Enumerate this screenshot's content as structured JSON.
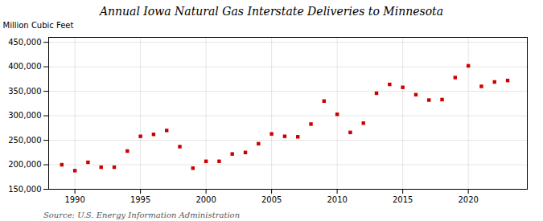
{
  "chart_data": {
    "type": "scatter",
    "title": "Annual Iowa Natural Gas Interstate Deliveries to Minnesota",
    "ylabel": "Million Cubic Feet",
    "source": "Source: U.S. Energy Information Administration",
    "x": [
      1989,
      1990,
      1991,
      1992,
      1993,
      1994,
      1995,
      1996,
      1997,
      1998,
      1999,
      2000,
      2001,
      2002,
      2003,
      2004,
      2005,
      2006,
      2007,
      2008,
      2009,
      2010,
      2011,
      2012,
      2013,
      2014,
      2015,
      2016,
      2017,
      2018,
      2019,
      2020,
      2021,
      2022,
      2023
    ],
    "values": [
      200000,
      188000,
      205000,
      195000,
      195000,
      228000,
      258000,
      262000,
      270000,
      237000,
      193000,
      207000,
      207000,
      222000,
      225000,
      243000,
      263000,
      258000,
      257000,
      283000,
      330000,
      303000,
      266000,
      285000,
      346000,
      364000,
      358000,
      343000,
      332000,
      333000,
      378000,
      402000,
      360000,
      369000,
      372000
    ],
    "color": "#cc0000",
    "marker": "square",
    "xlim": [
      1988.0,
      2024.5
    ],
    "ylim": [
      150000,
      460000
    ],
    "xticks": [
      1990,
      1995,
      2000,
      2005,
      2010,
      2015,
      2020
    ],
    "yticks": [
      {
        "value": 150000,
        "label": "150,000"
      },
      {
        "value": 200000,
        "label": "200,000"
      },
      {
        "value": 250000,
        "label": "250,000"
      },
      {
        "value": 300000,
        "label": "300,000"
      },
      {
        "value": 350000,
        "label": "350,000"
      },
      {
        "value": 400000,
        "label": "400,000"
      },
      {
        "value": 450000,
        "label": "450,000"
      }
    ],
    "grid": true
  }
}
